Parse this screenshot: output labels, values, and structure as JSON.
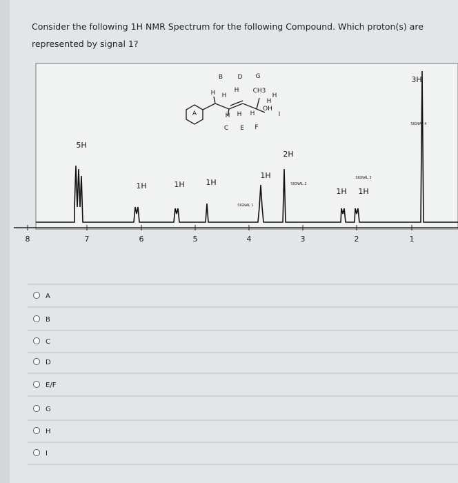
{
  "question": "Consider the following 1H NMR Spectrum for the following Compound. Which proton(s) are represented by signal 1?",
  "spectrum": {
    "molecule_labels": [
      "B",
      "D",
      "G",
      "H",
      "H",
      "H",
      "CH3",
      "H",
      "H",
      "OH",
      "I",
      "A",
      "H",
      "H",
      "H",
      "C",
      "E",
      "F"
    ],
    "integrations": [
      "5H",
      "1H",
      "1H",
      "1H",
      "1H",
      "2H",
      "1H",
      "1H",
      "3H"
    ],
    "signal_labels": [
      "SIGNAL 1",
      "SIGNAL 2",
      "SIGNAL 3",
      "SIGNAL 4"
    ],
    "axis_labels": [
      "8",
      "7",
      "6",
      "5",
      "4",
      "3",
      "2",
      "1"
    ]
  },
  "options": [
    "A",
    "B",
    "C",
    "D",
    "E/F",
    "G",
    "H",
    "I"
  ]
}
